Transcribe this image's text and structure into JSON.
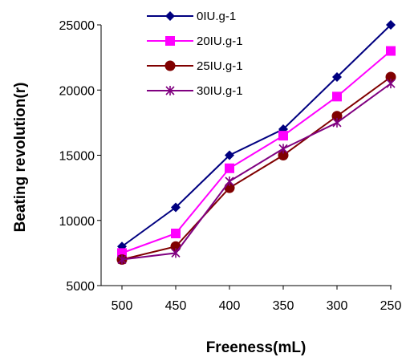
{
  "chart_data": {
    "type": "line",
    "xlabel": "Freeness(mL)",
    "ylabel": "Beating revolution(r)",
    "categories": [
      "500",
      "450",
      "400",
      "350",
      "300",
      "250"
    ],
    "ylim": [
      5000,
      25000
    ],
    "yticks": [
      "5000",
      "10000",
      "15000",
      "20000",
      "25000"
    ],
    "grid": false,
    "legend_position": "top-left",
    "series": [
      {
        "name": "0IU.g-1",
        "color": "#000080",
        "marker": "diamond",
        "values": [
          8000,
          11000,
          15000,
          17000,
          21000,
          25000
        ]
      },
      {
        "name": "20IU.g-1",
        "color": "#ff00ff",
        "marker": "square",
        "values": [
          7500,
          9000,
          14000,
          16500,
          19500,
          23000
        ]
      },
      {
        "name": "25IU.g-1",
        "color": "#800000",
        "marker": "circle",
        "values": [
          7000,
          8000,
          12500,
          15000,
          18000,
          21000
        ]
      },
      {
        "name": "30IU.g-1",
        "color": "#800080",
        "marker": "star",
        "values": [
          7000,
          7500,
          13000,
          15500,
          17500,
          20500
        ]
      }
    ]
  }
}
